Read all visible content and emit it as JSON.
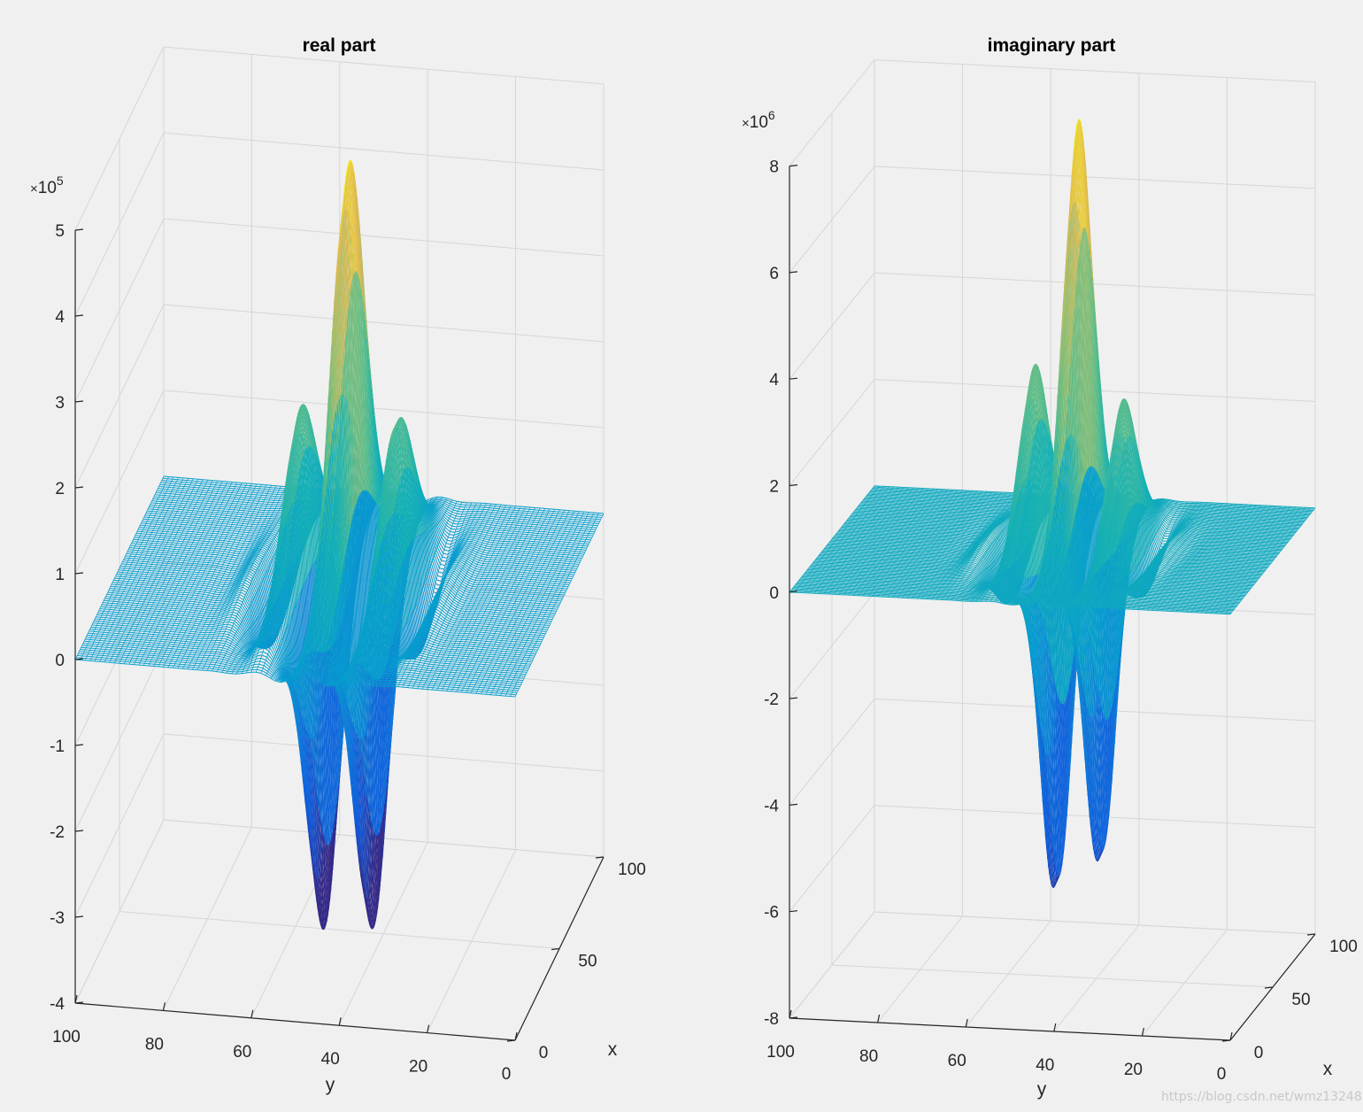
{
  "chart_data": [
    {
      "type": "surface",
      "title": "real part",
      "xlabel": "x",
      "ylabel": "y",
      "zlabel": "",
      "x_ticks": [
        "0",
        "50",
        "100"
      ],
      "y_ticks": [
        "100",
        "80",
        "60",
        "40",
        "20",
        "0"
      ],
      "z_ticks": [
        "-4",
        "-3",
        "-2",
        "-1",
        "0",
        "1",
        "2",
        "3",
        "4",
        "5"
      ],
      "z_exponent": "10",
      "z_exponent_power": "5",
      "xlim": [
        0,
        100
      ],
      "ylim": [
        0,
        100
      ],
      "zlim": [
        -400000,
        500000
      ],
      "z_peak": 500000,
      "z_trough": -310000,
      "grid": true,
      "colormap": "parula"
    },
    {
      "type": "surface",
      "title": "imaginary part",
      "xlabel": "x",
      "ylabel": "y",
      "zlabel": "",
      "x_ticks": [
        "0",
        "50",
        "100"
      ],
      "y_ticks": [
        "100",
        "80",
        "60",
        "40",
        "20",
        "0"
      ],
      "z_ticks": [
        "-8",
        "-6",
        "-4",
        "-2",
        "0",
        "2",
        "4",
        "6",
        "8"
      ],
      "z_exponent": "10",
      "z_exponent_power": "6",
      "xlim": [
        0,
        100
      ],
      "ylim": [
        0,
        100
      ],
      "zlim": [
        -8000000,
        8000000
      ],
      "z_peak": 8100000,
      "z_trough": -6500000,
      "grid": true,
      "colormap": "parula"
    }
  ],
  "watermark": "https://blog.csdn.net/wmz13248"
}
